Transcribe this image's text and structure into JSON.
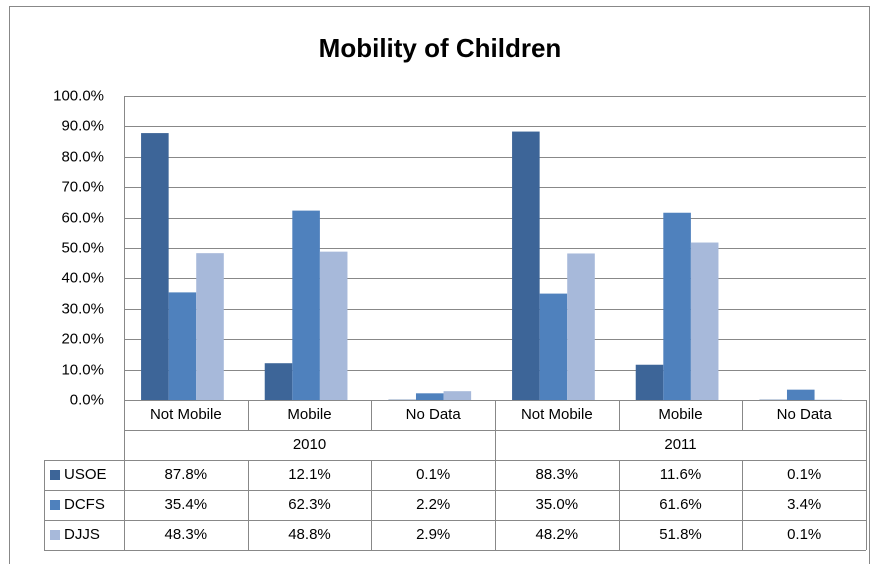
{
  "chart_data": {
    "type": "bar",
    "title": "Mobility of Children",
    "categories": [
      "Not Mobile",
      "Mobile",
      "No Data",
      "Not Mobile",
      "Mobile",
      "No Data"
    ],
    "category_groups": [
      "2010",
      "2011"
    ],
    "series": [
      {
        "name": "USOE",
        "color": "#3d6598",
        "values": [
          87.8,
          12.1,
          0.1,
          88.3,
          11.6,
          0.1
        ],
        "value_labels": [
          "87.8%",
          "12.1%",
          "0.1%",
          "88.3%",
          "11.6%",
          "0.1%"
        ]
      },
      {
        "name": "DCFS",
        "color": "#4f81bd",
        "values": [
          35.4,
          62.3,
          2.2,
          35.0,
          61.6,
          3.4
        ],
        "value_labels": [
          "35.4%",
          "62.3%",
          "2.2%",
          "35.0%",
          "61.6%",
          "3.4%"
        ]
      },
      {
        "name": "DJJS",
        "color": "#a7b9da",
        "values": [
          48.3,
          48.8,
          2.9,
          48.2,
          51.8,
          0.1
        ],
        "value_labels": [
          "48.3%",
          "48.8%",
          "2.9%",
          "48.2%",
          "51.8%",
          "0.1%"
        ]
      }
    ],
    "ylim": [
      0,
      100
    ],
    "yticks": [
      {
        "value": 0,
        "label": "0.0%"
      },
      {
        "value": 10,
        "label": "10.0%"
      },
      {
        "value": 20,
        "label": "20.0%"
      },
      {
        "value": 30,
        "label": "30.0%"
      },
      {
        "value": 40,
        "label": "40.0%"
      },
      {
        "value": 50,
        "label": "50.0%"
      },
      {
        "value": 60,
        "label": "60.0%"
      },
      {
        "value": 70,
        "label": "70.0%"
      },
      {
        "value": 80,
        "label": "80.0%"
      },
      {
        "value": 90,
        "label": "90.0%"
      },
      {
        "value": 100,
        "label": "100.0%"
      }
    ],
    "grid": true
  }
}
